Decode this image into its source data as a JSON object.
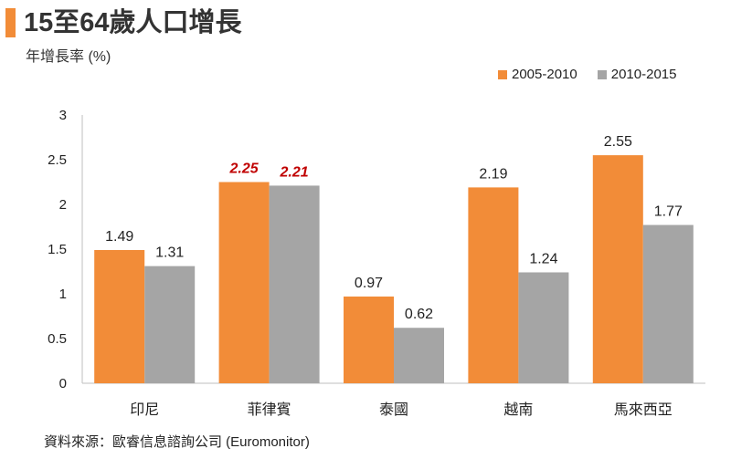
{
  "title": "15至64歲人口增長",
  "subtitle": "年增長率 (%)",
  "source": "資料來源：歐睿信息諮詢公司 (Euromonitor)",
  "colors": {
    "accent": "#f28c38",
    "series1": "#f28c38",
    "series2": "#a5a5a5",
    "highlight": "#c00000"
  },
  "chart_data": {
    "type": "bar",
    "title": "15至64歲人口增長",
    "ylabel": "",
    "xlabel": "",
    "ylim": [
      0,
      3
    ],
    "yticks": [
      0,
      0.5,
      1,
      1.5,
      2,
      2.5,
      3
    ],
    "ytick_labels": [
      "0",
      "0.5",
      "1",
      "1.5",
      "2",
      "2.5",
      "3"
    ],
    "categories": [
      "印尼",
      "菲律賓",
      "泰國",
      "越南",
      "馬來西亞"
    ],
    "series": [
      {
        "name": "2005-2010",
        "values": [
          1.49,
          2.25,
          0.97,
          2.19,
          2.55
        ],
        "labels": [
          "1.49",
          "2.25",
          "0.97",
          "2.19",
          "2.55"
        ]
      },
      {
        "name": "2010-2015",
        "values": [
          1.31,
          2.21,
          0.62,
          1.24,
          1.77
        ],
        "labels": [
          "1.31",
          "2.21",
          "0.62",
          "1.24",
          "1.77"
        ]
      }
    ],
    "highlighted_category": "菲律賓",
    "legend_position": "top-right",
    "grid": false
  }
}
